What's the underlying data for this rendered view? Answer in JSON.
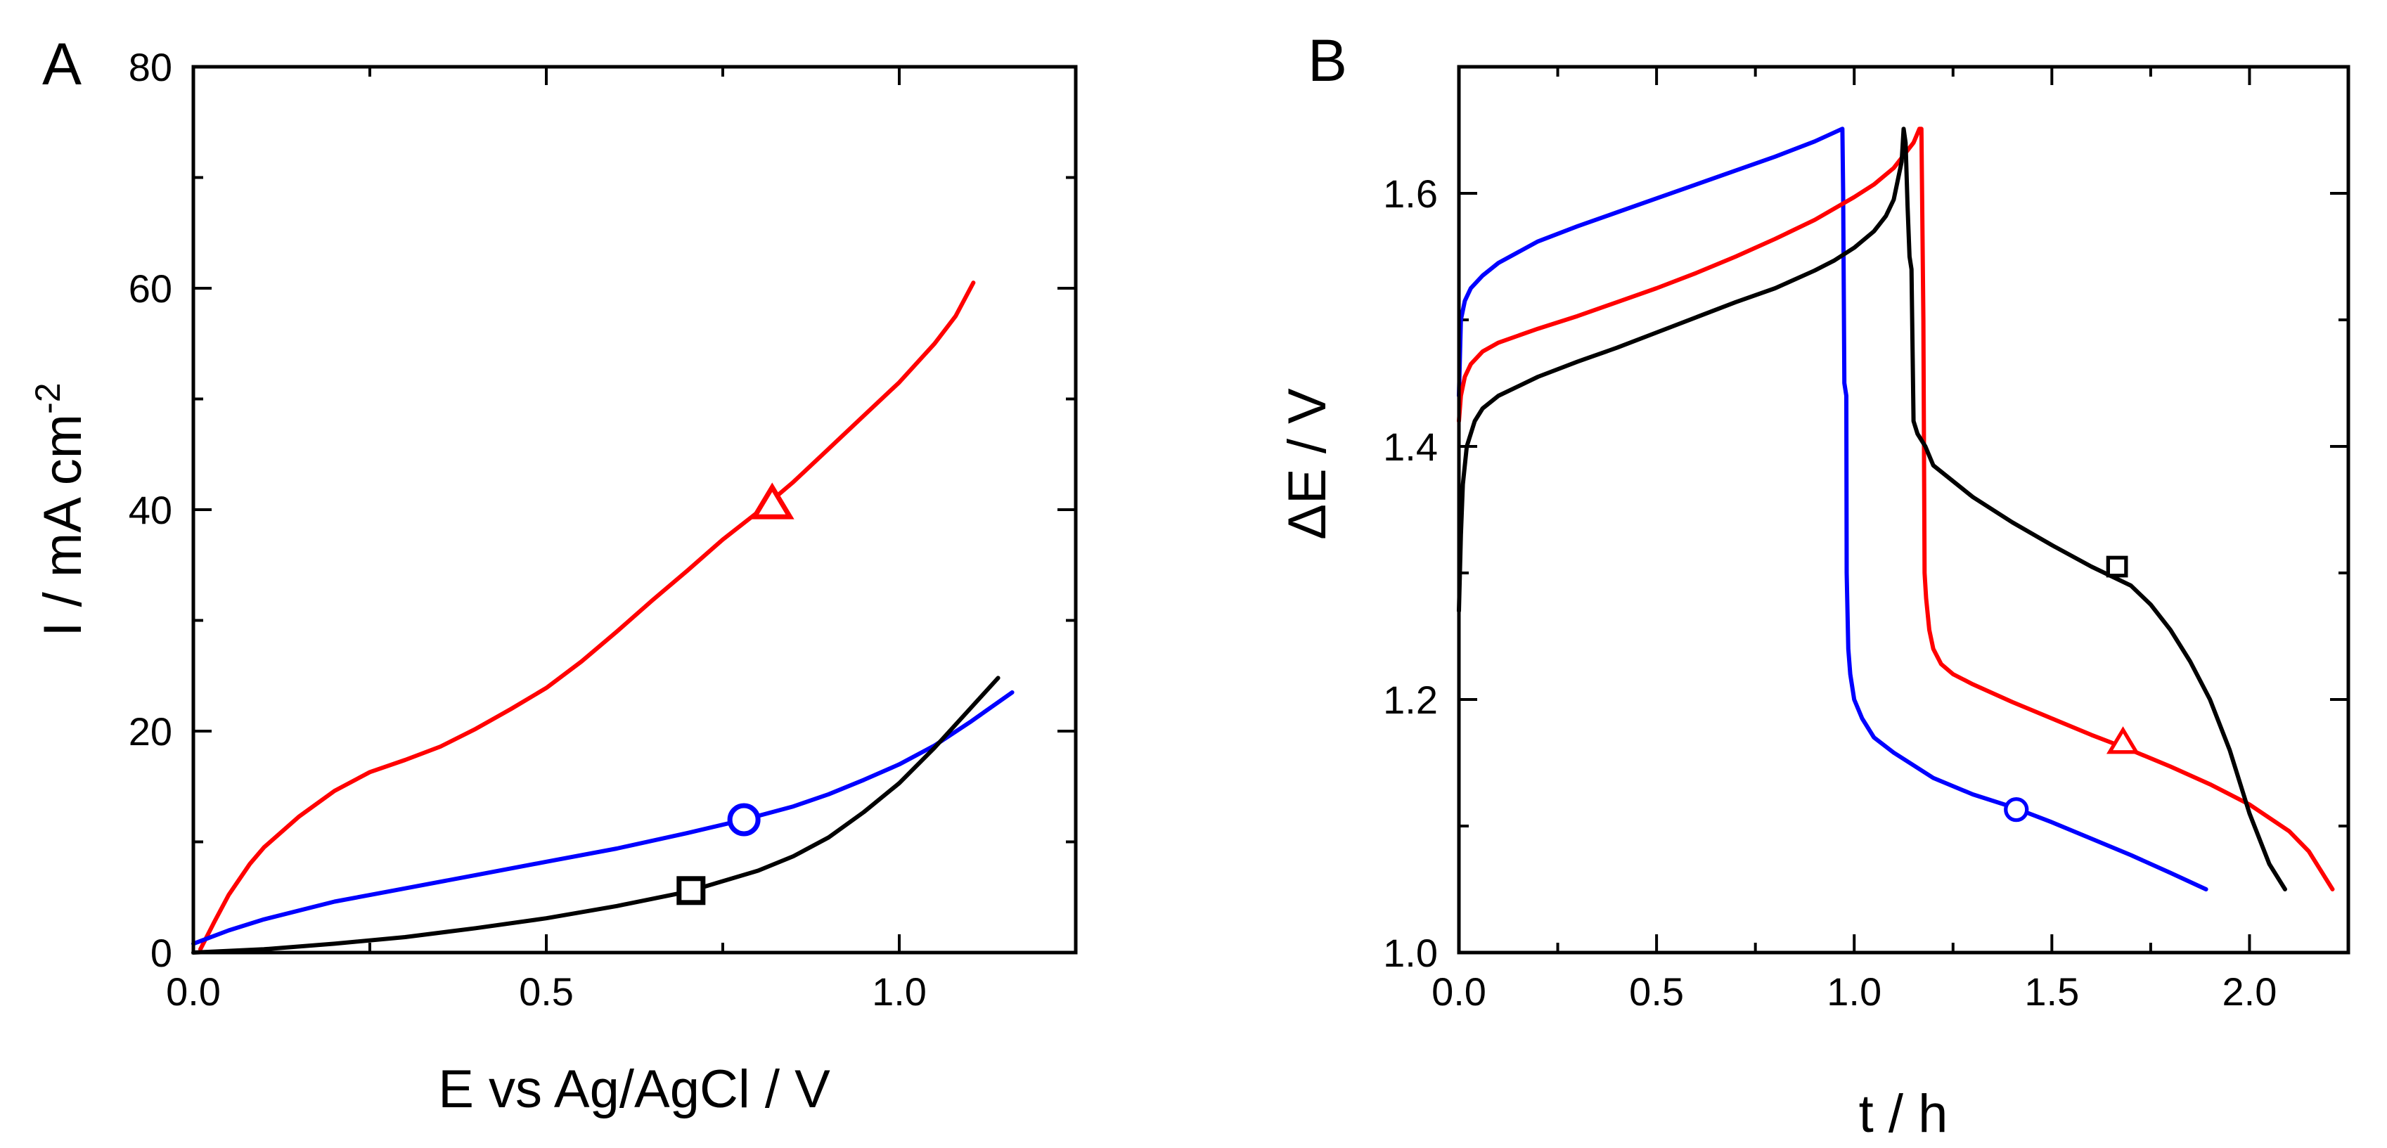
{
  "chart_data": [
    {
      "type": "line",
      "panel_label": "A",
      "xlabel": "E vs Ag/AgCl / V",
      "ylabel": "I / mA cm",
      "ylabel_sup": "-2",
      "xlim": [
        0,
        1.25
      ],
      "ylim": [
        0,
        80
      ],
      "xticks": [
        "0.0",
        "0.5",
        "1.0"
      ],
      "yticks": [
        "0",
        "20",
        "40",
        "60",
        "80"
      ],
      "grid": false,
      "legend": "none",
      "series": [
        {
          "color": "#ff0000",
          "marker": "triangle",
          "marker_at": [
            0.82,
            40.5
          ],
          "x": [
            0.01,
            0.03,
            0.05,
            0.08,
            0.1,
            0.15,
            0.2,
            0.25,
            0.3,
            0.35,
            0.4,
            0.45,
            0.5,
            0.55,
            0.6,
            0.65,
            0.7,
            0.75,
            0.8,
            0.85,
            0.9,
            0.95,
            1.0,
            1.05,
            1.08,
            1.105
          ],
          "y": [
            0.3,
            2.8,
            5.2,
            8.0,
            9.5,
            12.3,
            14.6,
            16.3,
            17.4,
            18.6,
            20.2,
            22.0,
            23.9,
            26.3,
            29.0,
            31.8,
            34.5,
            37.3,
            39.8,
            42.5,
            45.5,
            48.5,
            51.5,
            55.0,
            57.5,
            60.5
          ]
        },
        {
          "color": "#0000ff",
          "marker": "circle",
          "marker_at": [
            0.78,
            12.0
          ],
          "x": [
            0.0,
            0.05,
            0.1,
            0.2,
            0.3,
            0.4,
            0.5,
            0.6,
            0.7,
            0.78,
            0.85,
            0.9,
            0.95,
            1.0,
            1.05,
            1.1,
            1.16
          ],
          "y": [
            0.8,
            2.0,
            3.0,
            4.6,
            5.8,
            7.0,
            8.2,
            9.4,
            10.8,
            12.0,
            13.2,
            14.3,
            15.6,
            17.0,
            18.7,
            20.8,
            23.5
          ]
        },
        {
          "color": "#000000",
          "marker": "square",
          "marker_at": [
            0.705,
            5.6
          ],
          "x": [
            0.0,
            0.1,
            0.2,
            0.3,
            0.4,
            0.5,
            0.6,
            0.7,
            0.8,
            0.85,
            0.9,
            0.95,
            1.0,
            1.05,
            1.1,
            1.14
          ],
          "y": [
            0.0,
            0.3,
            0.8,
            1.4,
            2.2,
            3.1,
            4.2,
            5.5,
            7.4,
            8.7,
            10.4,
            12.7,
            15.3,
            18.5,
            22.0,
            24.8
          ]
        }
      ]
    },
    {
      "type": "line",
      "panel_label": "B",
      "xlabel": "t / h",
      "ylabel": "ΔE / V",
      "xlim": [
        0,
        2.25
      ],
      "ylim": [
        1.0,
        1.7
      ],
      "xticks": [
        "0.0",
        "0.5",
        "1.0",
        "1.5",
        "2.0"
      ],
      "yticks": [
        "1.0",
        "1.2",
        "1.4",
        "1.6"
      ],
      "grid": false,
      "legend": "none",
      "series": [
        {
          "color": "#0000ff",
          "marker": "circle",
          "marker_at": [
            1.41,
            1.113
          ],
          "x": [
            0.0,
            0.005,
            0.015,
            0.03,
            0.06,
            0.1,
            0.2,
            0.3,
            0.4,
            0.5,
            0.6,
            0.7,
            0.8,
            0.9,
            0.97,
            0.972,
            0.975,
            0.98,
            0.981,
            0.985,
            0.99,
            1.0,
            1.02,
            1.05,
            1.1,
            1.15,
            1.2,
            1.3,
            1.4,
            1.5,
            1.6,
            1.7,
            1.8,
            1.89
          ],
          "y": [
            1.44,
            1.5,
            1.515,
            1.525,
            1.535,
            1.545,
            1.562,
            1.574,
            1.585,
            1.596,
            1.607,
            1.618,
            1.629,
            1.641,
            1.651,
            1.6,
            1.45,
            1.44,
            1.3,
            1.24,
            1.22,
            1.2,
            1.185,
            1.17,
            1.158,
            1.148,
            1.138,
            1.125,
            1.115,
            1.103,
            1.09,
            1.077,
            1.063,
            1.05
          ]
        },
        {
          "color": "#ff0000",
          "marker": "triangle",
          "marker_at": [
            1.68,
            1.166
          ],
          "x": [
            0.0,
            0.005,
            0.015,
            0.03,
            0.06,
            0.1,
            0.2,
            0.3,
            0.4,
            0.5,
            0.6,
            0.7,
            0.8,
            0.9,
            1.0,
            1.05,
            1.1,
            1.15,
            1.165,
            1.17,
            1.175,
            1.178,
            1.182,
            1.19,
            1.2,
            1.22,
            1.25,
            1.3,
            1.4,
            1.5,
            1.6,
            1.7,
            1.8,
            1.9,
            2.0,
            2.1,
            2.15,
            2.21
          ],
          "y": [
            1.42,
            1.44,
            1.455,
            1.465,
            1.475,
            1.482,
            1.493,
            1.503,
            1.514,
            1.525,
            1.537,
            1.55,
            1.564,
            1.579,
            1.597,
            1.607,
            1.62,
            1.64,
            1.651,
            1.651,
            1.5,
            1.3,
            1.28,
            1.255,
            1.24,
            1.228,
            1.22,
            1.212,
            1.198,
            1.185,
            1.172,
            1.16,
            1.147,
            1.133,
            1.117,
            1.096,
            1.08,
            1.05
          ]
        },
        {
          "color": "#000000",
          "marker": "square",
          "marker_at": [
            1.665,
            1.305
          ],
          "x": [
            0.0,
            0.005,
            0.01,
            0.02,
            0.04,
            0.06,
            0.1,
            0.2,
            0.3,
            0.4,
            0.5,
            0.6,
            0.7,
            0.8,
            0.9,
            0.95,
            1.0,
            1.05,
            1.08,
            1.1,
            1.12,
            1.125,
            1.13,
            1.135,
            1.14,
            1.145,
            1.15,
            1.16,
            1.18,
            1.2,
            1.3,
            1.4,
            1.5,
            1.6,
            1.7,
            1.75,
            1.8,
            1.85,
            1.9,
            1.95,
            2.0,
            2.05,
            2.09
          ],
          "y": [
            1.27,
            1.33,
            1.37,
            1.4,
            1.42,
            1.43,
            1.44,
            1.455,
            1.467,
            1.478,
            1.49,
            1.502,
            1.514,
            1.525,
            1.539,
            1.547,
            1.557,
            1.57,
            1.582,
            1.595,
            1.625,
            1.651,
            1.64,
            1.59,
            1.55,
            1.54,
            1.42,
            1.41,
            1.4,
            1.385,
            1.36,
            1.34,
            1.322,
            1.305,
            1.29,
            1.275,
            1.255,
            1.23,
            1.2,
            1.16,
            1.11,
            1.07,
            1.05
          ]
        }
      ]
    }
  ]
}
